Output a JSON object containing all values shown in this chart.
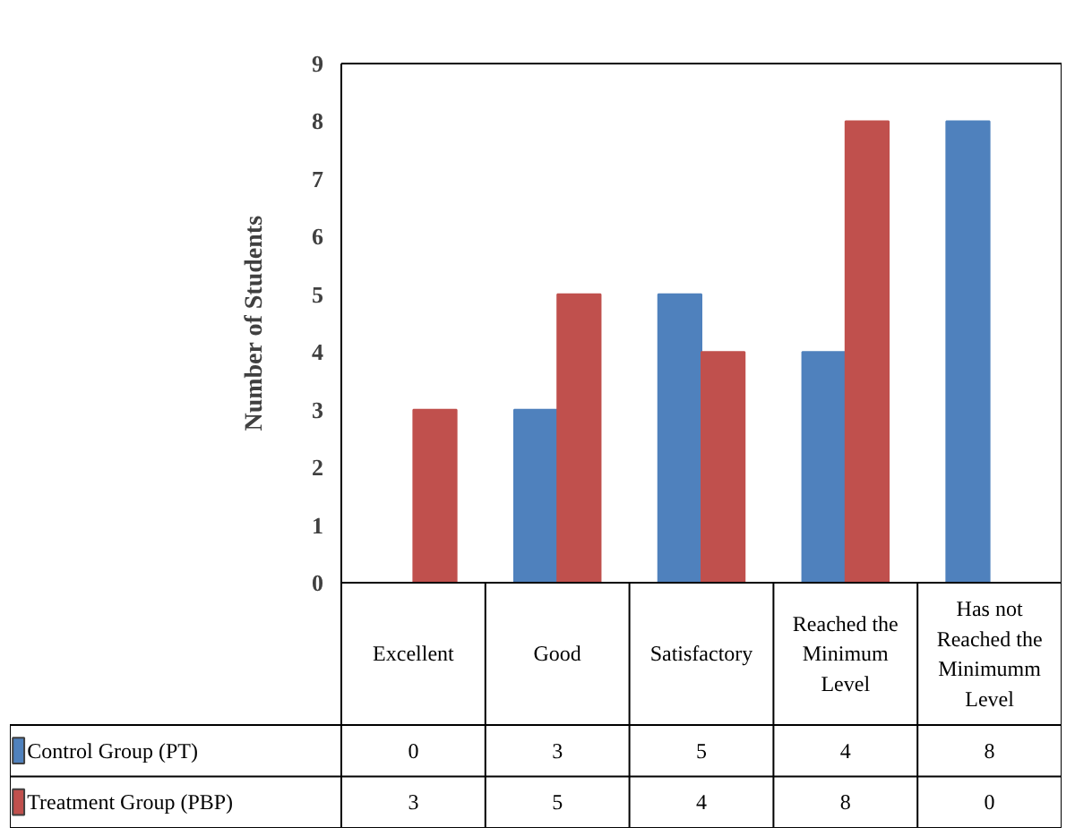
{
  "chart_data": {
    "type": "bar",
    "ylabel": "Number of Students",
    "categories": [
      "Excellent",
      "Good",
      "Satisfactory",
      "Reached the Minimum Level",
      "Has not Reached the Minimumm Level"
    ],
    "series": [
      {
        "name": "Control Group (PT)",
        "color": "#4f81bd",
        "values": [
          0,
          3,
          5,
          4,
          8
        ]
      },
      {
        "name": "Treatment Group (PBP)",
        "color": "#c0504d",
        "values": [
          3,
          5,
          4,
          8,
          0
        ]
      }
    ],
    "ylim": [
      0,
      9
    ],
    "yticks": [
      0,
      1,
      2,
      3,
      4,
      5,
      6,
      7,
      8,
      9
    ],
    "grid": false,
    "legend": "bottom",
    "data_labels": true
  }
}
